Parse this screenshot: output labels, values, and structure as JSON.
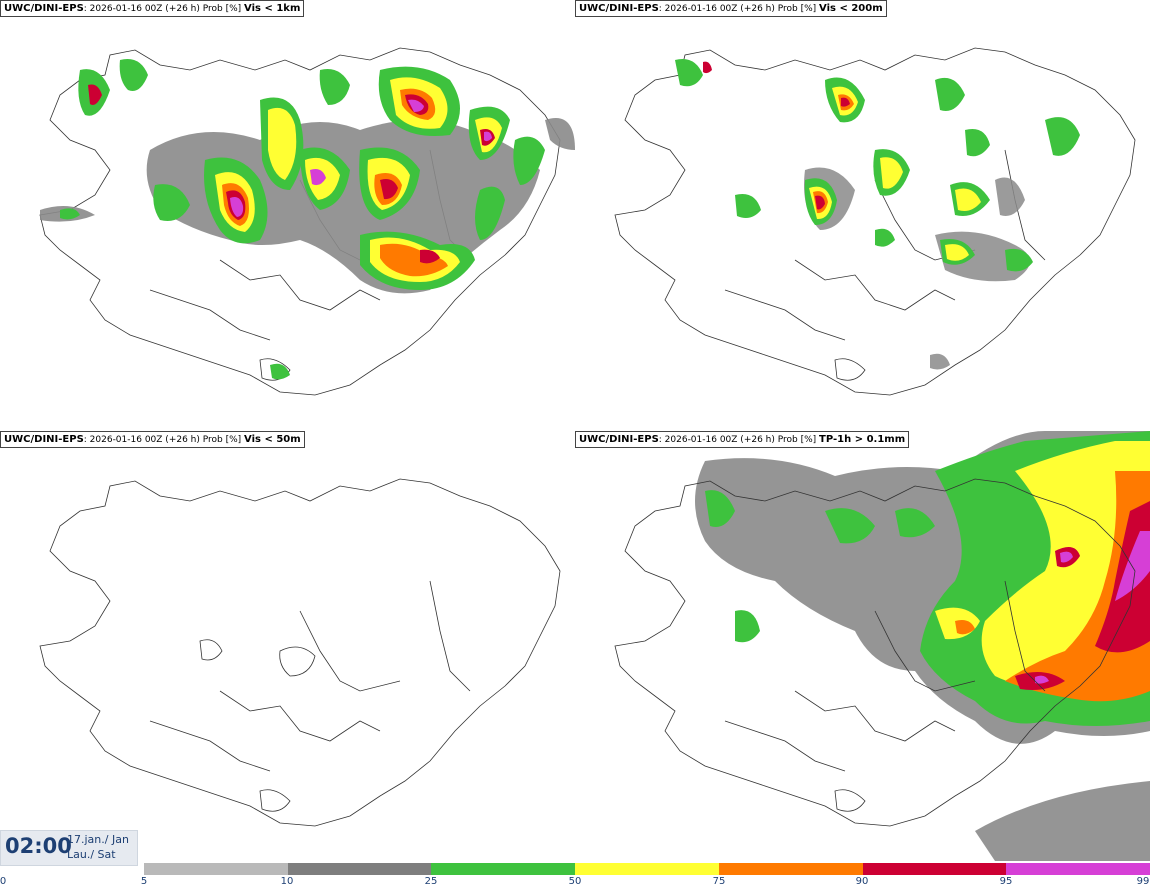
{
  "panels": [
    {
      "model": "UWC/DINI-EPS",
      "meta": ": 2026-01-16 00Z (+26 h) Prob [%]",
      "variable": "Vis < 1km"
    },
    {
      "model": "UWC/DINI-EPS",
      "meta": ": 2026-01-16 00Z (+26 h) Prob [%]",
      "variable": "Vis < 200m"
    },
    {
      "model": "UWC/DINI-EPS",
      "meta": ": 2026-01-16 00Z (+26 h) Prob [%]",
      "variable": "Vis < 50m"
    },
    {
      "model": "UWC/DINI-EPS",
      "meta": ": 2026-01-16 00Z (+26 h) Prob [%]",
      "variable": "TP-1h > 0.1mm"
    }
  ],
  "time": {
    "hour": "02:00",
    "date": "17.jan./ Jan",
    "day": "Lau./ Sat"
  },
  "colorbar": {
    "ticks": [
      "0",
      "5",
      "10",
      "25",
      "50",
      "75",
      "90",
      "95",
      "99"
    ],
    "colors": [
      "#b9b9b9",
      "#7e7e7e",
      "#3ec23e",
      "#ffff33",
      "#ff7a00",
      "#cc0033",
      "#d63fd6"
    ]
  }
}
